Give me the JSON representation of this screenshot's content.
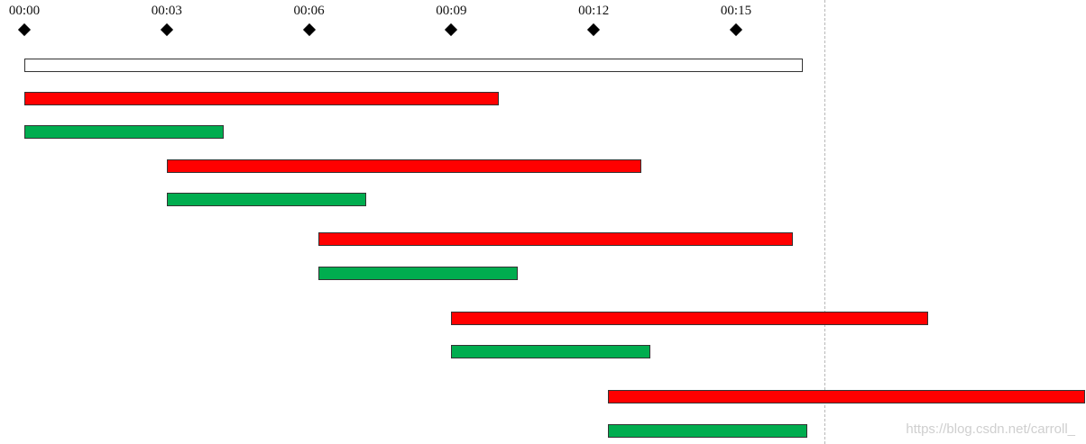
{
  "timeline": {
    "ticks": [
      "00:00",
      "00:03",
      "00:06",
      "00:09",
      "00:12",
      "00:15"
    ],
    "tick_minutes": [
      0,
      3,
      6,
      9,
      12,
      15
    ]
  },
  "colors": {
    "red": "#ff0000",
    "green": "#00ad4f",
    "white": "#ffffff"
  },
  "bars": [
    {
      "start": 0.0,
      "end": 16.4,
      "color": "white"
    },
    {
      "start": 0.0,
      "end": 10.0,
      "color": "red"
    },
    {
      "start": 0.0,
      "end": 4.2,
      "color": "green"
    },
    {
      "start": 3.0,
      "end": 13.0,
      "color": "red"
    },
    {
      "start": 3.0,
      "end": 7.2,
      "color": "green"
    },
    {
      "start": 6.2,
      "end": 16.2,
      "color": "red"
    },
    {
      "start": 6.2,
      "end": 10.4,
      "color": "green"
    },
    {
      "start": 9.0,
      "end": 19.05,
      "color": "red"
    },
    {
      "start": 9.0,
      "end": 13.2,
      "color": "green"
    },
    {
      "start": 12.3,
      "end": 22.4,
      "color": "red"
    },
    {
      "start": 12.3,
      "end": 16.5,
      "color": "green"
    }
  ],
  "watermark": "https://blog.csdn.net/carroll_"
}
